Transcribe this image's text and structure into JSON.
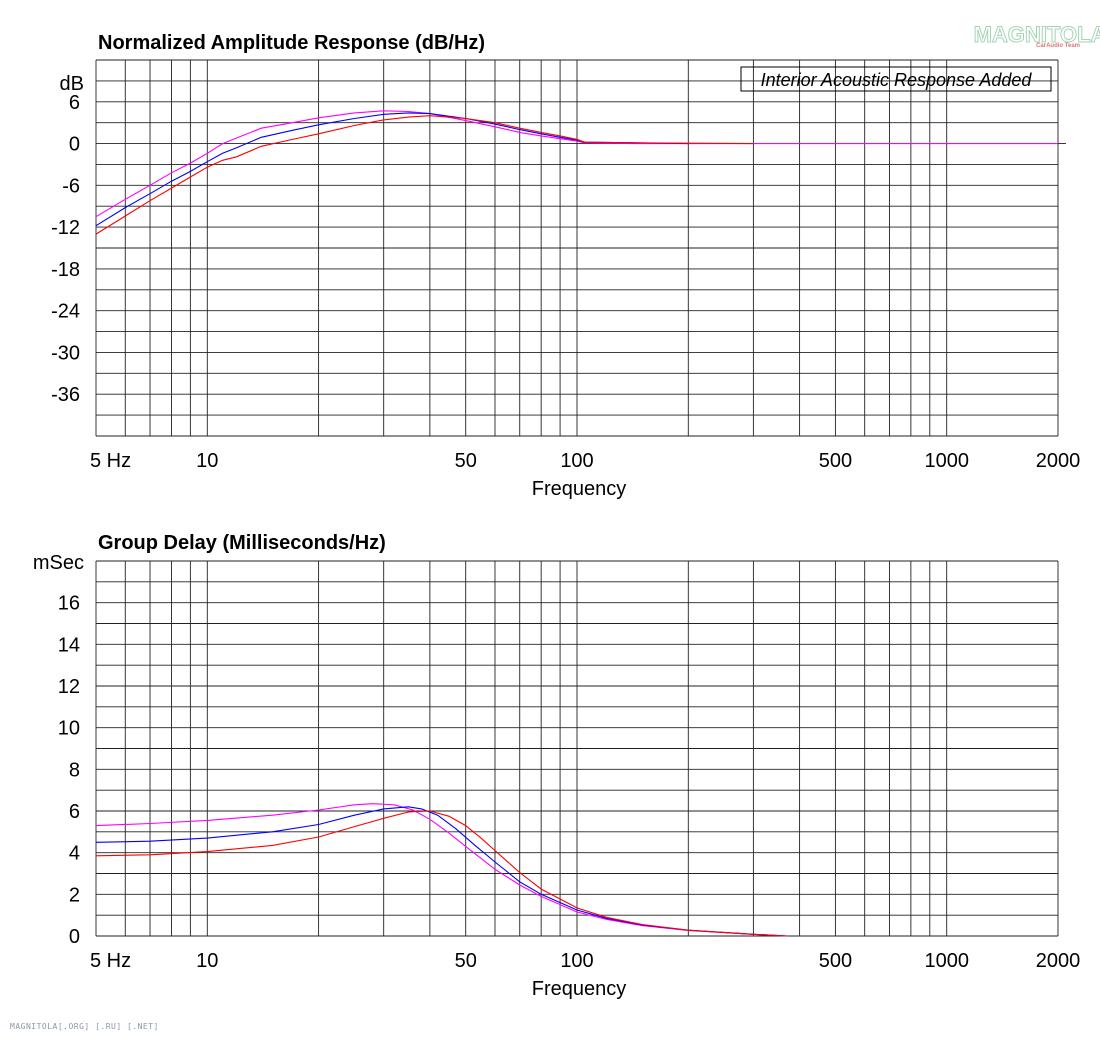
{
  "watermark": {
    "name": "MAGNITOLA",
    "sub": "CarAudio Team"
  },
  "footer": "MAGNITOLA[.ORG] [.RU] [.NET]",
  "chart_data": [
    {
      "type": "line",
      "title": "Normalized Amplitude Response (dB/Hz)",
      "xlabel": "Frequency",
      "ylabel": "dB",
      "xscale": "log",
      "xlim": [
        5,
        2000
      ],
      "ylim": [
        -42,
        12
      ],
      "yticks": [
        6,
        0,
        -6,
        -12,
        -18,
        -24,
        -30,
        -36
      ],
      "xtick_labels": [
        {
          "value": 5,
          "label": "5  Hz"
        },
        {
          "value": 10,
          "label": "10"
        },
        {
          "value": 50,
          "label": "50"
        },
        {
          "value": 100,
          "label": "100"
        },
        {
          "value": 500,
          "label": "500"
        },
        {
          "value": 1000,
          "label": "1000"
        },
        {
          "value": 2000,
          "label": "2000"
        }
      ],
      "annotation": "Interior Acoustic Response Added",
      "grid": true,
      "series": [
        {
          "color": "#ff00ff",
          "x": [
            5,
            6,
            7,
            8,
            9,
            10,
            11,
            12,
            14,
            17,
            20,
            25,
            30,
            35,
            40,
            50,
            60,
            70,
            80,
            90,
            100,
            105,
            150,
            1000,
            2000
          ],
          "y": [
            -10.5,
            -8.0,
            -6.0,
            -4.2,
            -2.8,
            -1.4,
            0.0,
            0.8,
            2.2,
            3.0,
            3.7,
            4.4,
            4.7,
            4.6,
            4.3,
            3.3,
            2.4,
            1.6,
            1.1,
            0.7,
            0.35,
            0.1,
            0.0,
            0.0,
            0.0
          ]
        },
        {
          "color": "#0000ff",
          "x": [
            5,
            6,
            7,
            8,
            9,
            10,
            11,
            12,
            14,
            17,
            20,
            25,
            30,
            35,
            40,
            50,
            60,
            70,
            80,
            90,
            100,
            105,
            150,
            200
          ],
          "y": [
            -11.8,
            -9.2,
            -7.2,
            -5.4,
            -4.0,
            -2.6,
            -1.4,
            -0.6,
            0.9,
            1.9,
            2.7,
            3.6,
            4.2,
            4.4,
            4.3,
            3.6,
            2.8,
            2.0,
            1.4,
            0.9,
            0.5,
            0.2,
            0.1,
            0.0
          ]
        },
        {
          "color": "#ff0000",
          "x": [
            5,
            6,
            7,
            8,
            9,
            10,
            11,
            12,
            14,
            17,
            20,
            25,
            30,
            35,
            40,
            50,
            60,
            70,
            80,
            90,
            100,
            105,
            150,
            300
          ],
          "y": [
            -13.0,
            -10.4,
            -8.2,
            -6.4,
            -4.8,
            -3.4,
            -2.4,
            -1.9,
            -0.4,
            0.6,
            1.4,
            2.6,
            3.4,
            3.8,
            4.0,
            3.6,
            3.0,
            2.2,
            1.6,
            1.1,
            0.6,
            0.2,
            0.1,
            0.0
          ]
        }
      ]
    },
    {
      "type": "line",
      "title": "Group Delay (Milliseconds/Hz)",
      "xlabel": "Frequency",
      "ylabel": "mSec",
      "xscale": "log",
      "xlim": [
        5,
        2000
      ],
      "ylim": [
        0,
        18
      ],
      "yticks": [
        16,
        14,
        12,
        10,
        8,
        6,
        4,
        2,
        0
      ],
      "xtick_labels": [
        {
          "value": 5,
          "label": "5  Hz"
        },
        {
          "value": 10,
          "label": "10"
        },
        {
          "value": 50,
          "label": "50"
        },
        {
          "value": 100,
          "label": "100"
        },
        {
          "value": 500,
          "label": "500"
        },
        {
          "value": 1000,
          "label": "1000"
        },
        {
          "value": 2000,
          "label": "2000"
        }
      ],
      "grid": true,
      "series": [
        {
          "color": "#ff00ff",
          "x": [
            5,
            7,
            10,
            15,
            20,
            25,
            28,
            32,
            36,
            40,
            45,
            50,
            60,
            70,
            80,
            100,
            120,
            150,
            200,
            300,
            370
          ],
          "y": [
            5.3,
            5.4,
            5.55,
            5.8,
            6.05,
            6.3,
            6.35,
            6.3,
            6.05,
            5.6,
            4.95,
            4.3,
            3.2,
            2.45,
            1.9,
            1.15,
            0.8,
            0.5,
            0.27,
            0.08,
            0.0
          ]
        },
        {
          "color": "#0000ff",
          "x": [
            5,
            7,
            10,
            15,
            20,
            25,
            30,
            35,
            38,
            42,
            47,
            53,
            60,
            70,
            80,
            100,
            120,
            150,
            200,
            300,
            370
          ],
          "y": [
            4.5,
            4.55,
            4.7,
            5.0,
            5.35,
            5.8,
            6.1,
            6.2,
            6.1,
            5.8,
            5.15,
            4.35,
            3.55,
            2.6,
            2.0,
            1.25,
            0.85,
            0.53,
            0.28,
            0.08,
            0.0
          ]
        },
        {
          "color": "#ff0000",
          "x": [
            5,
            7,
            10,
            15,
            20,
            25,
            30,
            35,
            40,
            45,
            50,
            55,
            60,
            70,
            80,
            100,
            120,
            150,
            200,
            300,
            370
          ],
          "y": [
            3.85,
            3.9,
            4.05,
            4.35,
            4.75,
            5.25,
            5.65,
            5.95,
            6.0,
            5.75,
            5.3,
            4.7,
            4.1,
            3.05,
            2.25,
            1.35,
            0.9,
            0.55,
            0.28,
            0.08,
            0.0
          ]
        }
      ]
    }
  ]
}
